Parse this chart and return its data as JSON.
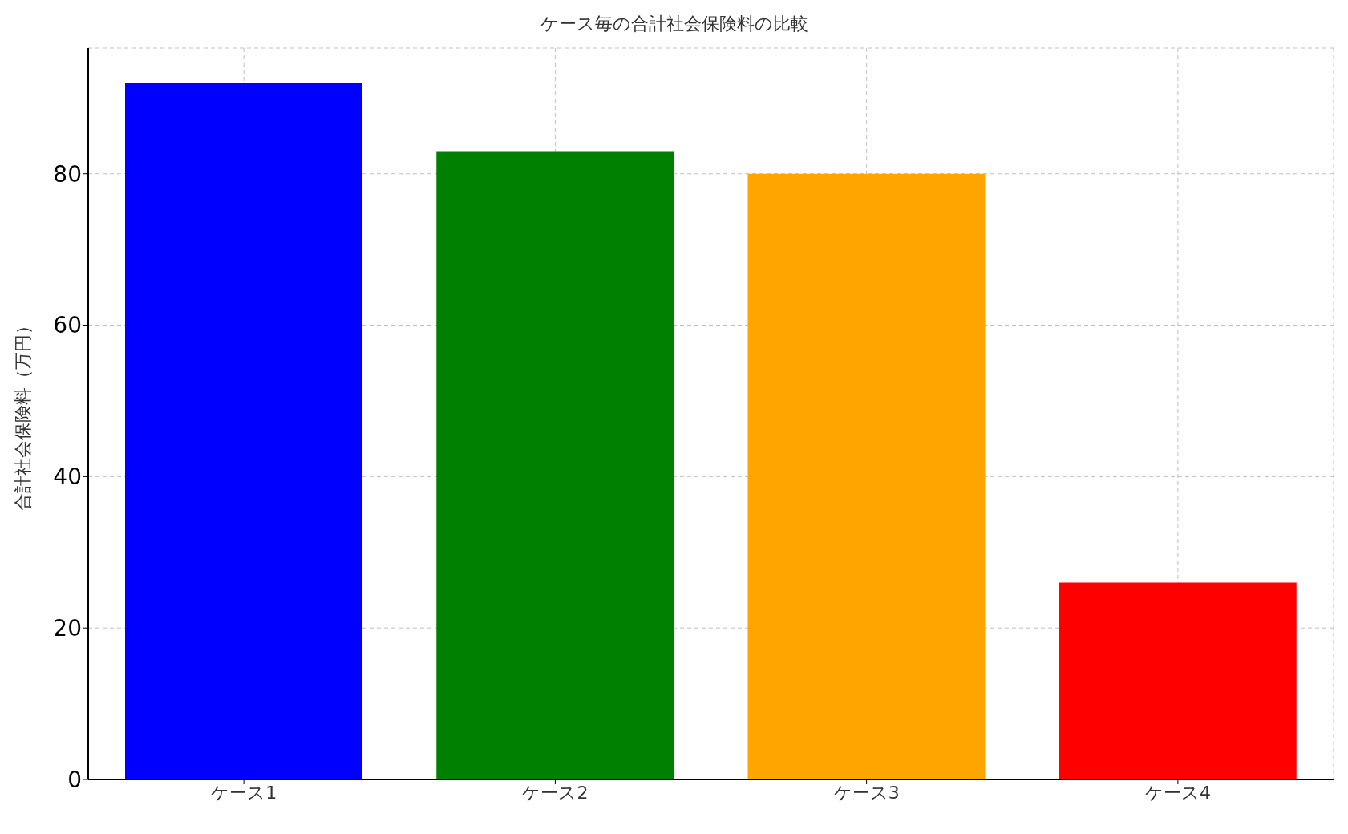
{
  "chart_data": {
    "type": "bar",
    "title": "ケース毎の合計社会保険料の比較",
    "ylabel": "合計社会保険料（万円）",
    "categories": [
      "ケース1",
      "ケース2",
      "ケース3",
      "ケース4"
    ],
    "values": [
      92,
      83,
      80,
      26
    ],
    "colors": [
      "#0000ff",
      "#008000",
      "#ffa500",
      "#ff0000"
    ],
    "ylim": [
      0,
      96.6
    ],
    "yticks": [
      0,
      20,
      40,
      60,
      80
    ],
    "grid": true
  }
}
